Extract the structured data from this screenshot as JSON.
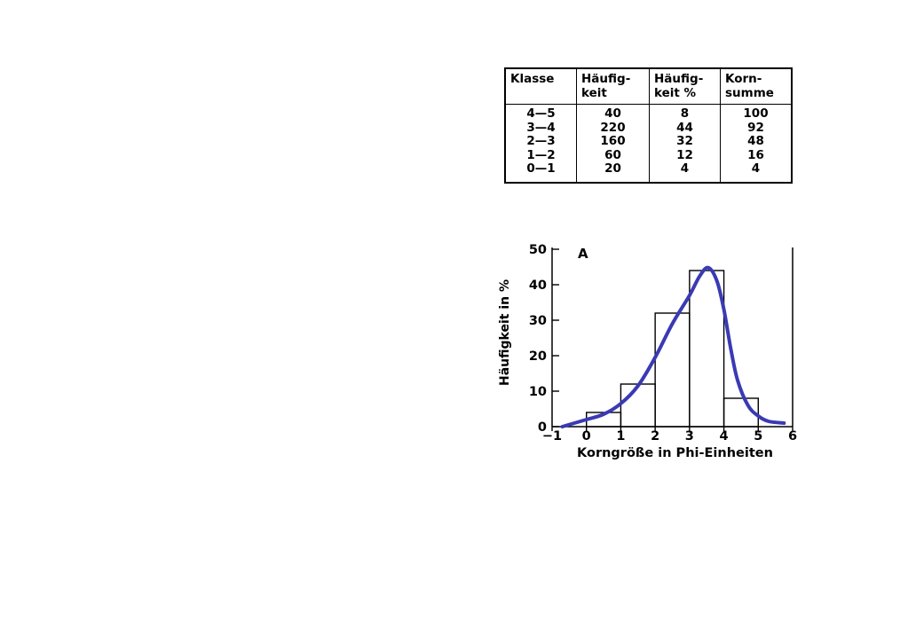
{
  "table": {
    "headers": [
      "Klasse",
      "Häufig-\nkeit",
      "Häufig-\nkeit %",
      "Korn-\nsumme"
    ],
    "rows": [
      [
        "4—5",
        "40",
        "8",
        "100"
      ],
      [
        "3—4",
        "220",
        "44",
        "92"
      ],
      [
        "2—3",
        "160",
        "32",
        "48"
      ],
      [
        "1—2",
        "60",
        "12",
        "16"
      ],
      [
        "0—1",
        "20",
        "4",
        "4"
      ]
    ]
  },
  "chart_data": {
    "type": "bar",
    "title": "A",
    "xlabel": "Korngröße in Phi-Einheiten",
    "ylabel": "Häufigkeit in %",
    "xlim": [
      -1,
      6
    ],
    "ylim": [
      0,
      50
    ],
    "xticks": [
      -1,
      0,
      1,
      2,
      3,
      4,
      5,
      6
    ],
    "yticks": [
      0,
      10,
      20,
      30,
      40,
      50
    ],
    "bins": [
      {
        "from": 0,
        "to": 1,
        "value": 4
      },
      {
        "from": 1,
        "to": 2,
        "value": 12
      },
      {
        "from": 2,
        "to": 3,
        "value": 32
      },
      {
        "from": 3,
        "to": 4,
        "value": 44
      },
      {
        "from": 4,
        "to": 5,
        "value": 8
      }
    ],
    "curve": {
      "color": "#3a3ab4",
      "points": [
        [
          -0.7,
          0
        ],
        [
          0,
          2
        ],
        [
          0.5,
          3.5
        ],
        [
          1,
          6.5
        ],
        [
          1.5,
          11.5
        ],
        [
          2,
          19.5
        ],
        [
          2.5,
          29
        ],
        [
          3,
          37
        ],
        [
          3.3,
          42.5
        ],
        [
          3.55,
          44.8
        ],
        [
          3.8,
          41
        ],
        [
          4,
          33
        ],
        [
          4.2,
          22
        ],
        [
          4.4,
          13
        ],
        [
          4.7,
          6
        ],
        [
          5,
          3
        ],
        [
          5.3,
          1.5
        ],
        [
          5.75,
          1
        ]
      ]
    }
  }
}
